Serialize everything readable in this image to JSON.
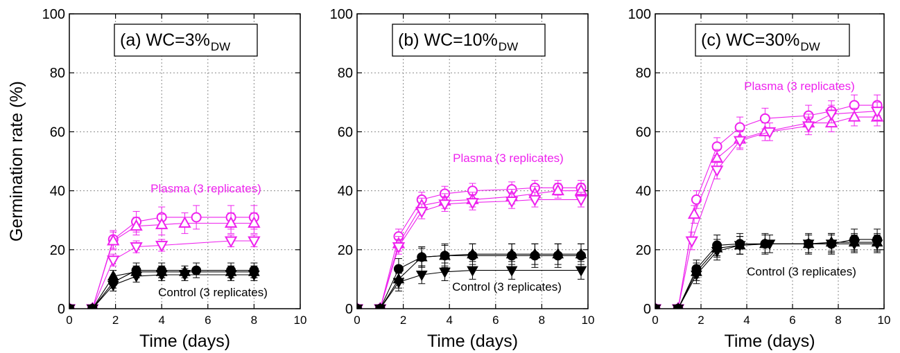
{
  "figure": {
    "ylabel": "Germination rate (%)"
  },
  "colors": {
    "plasma": "#ee22ee",
    "control": "#000000",
    "grid": "#888888"
  },
  "chart_data": [
    {
      "type": "line",
      "title": "(a) WC=3%",
      "title_subscript": "DW",
      "xlabel": "Time (days)",
      "ylabel": "Germination rate (%)",
      "xlim": [
        0,
        10
      ],
      "ylim": [
        0,
        100
      ],
      "xticks": [
        0,
        2,
        4,
        6,
        8,
        10
      ],
      "yticks": [
        0,
        20,
        40,
        60,
        80,
        100
      ],
      "grid": true,
      "annotations": [
        {
          "text": "Plasma (3 replicates)",
          "color": "plasma"
        },
        {
          "text": "Control (3 replicates)",
          "color": "control"
        }
      ],
      "series": [
        {
          "group": "plasma",
          "marker": "circle-open",
          "x": [
            0,
            1,
            1.9,
            2.9,
            4,
            5.5,
            7,
            8
          ],
          "y": [
            0,
            0,
            23.5,
            29.5,
            31,
            31,
            31,
            31
          ],
          "err": [
            0,
            0,
            3,
            3.5,
            3.5,
            4,
            4,
            4
          ]
        },
        {
          "group": "plasma",
          "marker": "triangle-up-open",
          "x": [
            0,
            1,
            1.9,
            2.9,
            4,
            5,
            7,
            8
          ],
          "y": [
            0,
            0,
            23,
            28,
            28.5,
            29,
            29,
            29
          ],
          "err": [
            0,
            0,
            3,
            3,
            3.5,
            3.5,
            3.5,
            3.5
          ]
        },
        {
          "group": "plasma",
          "marker": "triangle-down-open",
          "x": [
            0,
            1,
            1.9,
            2.9,
            4,
            7,
            8
          ],
          "y": [
            0,
            0,
            16.5,
            21,
            21.5,
            23,
            23
          ],
          "err": [
            0,
            0,
            2,
            2,
            2,
            2,
            2
          ]
        },
        {
          "group": "control",
          "marker": "circle-filled",
          "x": [
            0,
            1,
            1.9,
            2.9,
            4,
            5.5,
            7,
            8
          ],
          "y": [
            0,
            0,
            9,
            13,
            13,
            13,
            13,
            13
          ],
          "err": [
            0,
            0,
            2,
            2.5,
            2.5,
            2.5,
            2.5,
            2.5
          ]
        },
        {
          "group": "control",
          "marker": "triangle-up-filled",
          "x": [
            0,
            1,
            1.9,
            2.9,
            4,
            5,
            7,
            8
          ],
          "y": [
            0,
            0,
            11,
            12.5,
            12.5,
            12.5,
            12.5,
            12.5
          ],
          "err": [
            0,
            0,
            2,
            2,
            2,
            2,
            2,
            2
          ]
        },
        {
          "group": "control",
          "marker": "triangle-down-filled",
          "x": [
            0,
            1,
            1.9,
            2.9,
            4,
            5,
            7,
            8
          ],
          "y": [
            0,
            0,
            8,
            11,
            11.5,
            11.5,
            11.5,
            11.5
          ],
          "err": [
            0,
            0,
            2,
            2,
            2,
            2,
            2,
            2
          ]
        }
      ]
    },
    {
      "type": "line",
      "title": "(b) WC=10%",
      "title_subscript": "DW",
      "xlabel": "Time (days)",
      "ylabel": "",
      "xlim": [
        0,
        10
      ],
      "ylim": [
        0,
        100
      ],
      "xticks": [
        0,
        2,
        4,
        6,
        8,
        10
      ],
      "yticks": [
        0,
        20,
        40,
        60,
        80,
        100
      ],
      "grid": true,
      "annotations": [
        {
          "text": "Plasma (3 replicates)",
          "color": "plasma"
        },
        {
          "text": "Control (3 replicates)",
          "color": "control"
        }
      ],
      "series": [
        {
          "group": "plasma",
          "marker": "circle-open",
          "x": [
            0,
            1,
            1.8,
            2.8,
            3.8,
            5,
            6.7,
            7.7,
            8.7,
            9.7
          ],
          "y": [
            0,
            0,
            24.5,
            37,
            39,
            40,
            40.5,
            41,
            41,
            41
          ],
          "err": [
            0,
            0,
            2.5,
            2.5,
            2.5,
            2.5,
            2.5,
            2.5,
            2.5,
            2.5
          ]
        },
        {
          "group": "plasma",
          "marker": "triangle-up-open",
          "x": [
            0,
            1,
            1.8,
            2.8,
            3.8,
            5,
            6.7,
            7.7,
            8.7,
            9.7
          ],
          "y": [
            0,
            0,
            22,
            35,
            36.5,
            37,
            38,
            39,
            40,
            40
          ],
          "err": [
            0,
            0,
            2.5,
            2.5,
            2.5,
            2.5,
            2.5,
            2.5,
            2.5,
            2.5
          ]
        },
        {
          "group": "plasma",
          "marker": "triangle-down-open",
          "x": [
            0,
            1,
            1.8,
            2.8,
            3.8,
            5,
            6.7,
            7.7,
            9.7
          ],
          "y": [
            0,
            0,
            21,
            33,
            35.5,
            36,
            36.5,
            37,
            37
          ],
          "err": [
            0,
            0,
            2.5,
            2.5,
            2.5,
            2.5,
            2.5,
            2.5,
            2.5
          ]
        },
        {
          "group": "control",
          "marker": "circle-filled",
          "x": [
            0,
            1,
            1.8,
            2.8,
            3.8,
            5,
            6.7,
            7.7,
            8.7,
            9.7
          ],
          "y": [
            0,
            0,
            13.5,
            17.5,
            18,
            18,
            18,
            18,
            18,
            18
          ],
          "err": [
            0,
            0,
            3.5,
            3.5,
            4,
            4,
            4,
            4,
            4,
            4
          ]
        },
        {
          "group": "control",
          "marker": "triangle-up-filled",
          "x": [
            0,
            1,
            1.8,
            2.8,
            3.8,
            5,
            6.7,
            7.7,
            8.7,
            9.7
          ],
          "y": [
            0,
            0,
            10,
            17.5,
            18,
            18.5,
            18.5,
            18.5,
            18.5,
            18.5
          ],
          "err": [
            0,
            0,
            3,
            3,
            3.5,
            3.5,
            3.5,
            3.5,
            3.5,
            3.5
          ]
        },
        {
          "group": "control",
          "marker": "triangle-down-filled",
          "x": [
            0,
            1,
            1.8,
            2.8,
            3.8,
            5,
            6.7,
            9.7
          ],
          "y": [
            0,
            0,
            9,
            11.5,
            12.5,
            13,
            13,
            13
          ],
          "err": [
            0,
            0,
            3,
            3,
            3,
            3,
            3,
            3
          ]
        }
      ]
    },
    {
      "type": "line",
      "title": "(c) WC=30%",
      "title_subscript": "DW",
      "xlabel": "Time (days)",
      "ylabel": "",
      "xlim": [
        0,
        10
      ],
      "ylim": [
        0,
        100
      ],
      "xticks": [
        0,
        2,
        4,
        6,
        8,
        10
      ],
      "yticks": [
        0,
        20,
        40,
        60,
        80,
        100
      ],
      "grid": true,
      "annotations": [
        {
          "text": "Plasma (3 replicates)",
          "color": "plasma"
        },
        {
          "text": "Control (3 replicates)",
          "color": "control"
        }
      ],
      "series": [
        {
          "group": "plasma",
          "marker": "circle-open",
          "x": [
            0,
            1,
            1.8,
            2.7,
            3.7,
            4.8,
            6.7,
            7.7,
            8.7,
            9.7
          ],
          "y": [
            0,
            0,
            37,
            55,
            61.5,
            64.5,
            65.5,
            67,
            69,
            69
          ],
          "err": [
            0,
            0,
            3,
            3,
            3.5,
            3.5,
            3.5,
            3.5,
            3.5,
            3.5
          ]
        },
        {
          "group": "plasma",
          "marker": "triangle-up-open",
          "x": [
            0,
            1,
            1.7,
            2.7,
            3.7,
            4.8,
            6.7,
            7.7,
            8.7,
            9.7
          ],
          "y": [
            0,
            0,
            32,
            51,
            57.5,
            60,
            63,
            63,
            65,
            65
          ],
          "err": [
            0,
            0,
            3,
            3,
            3,
            3,
            3,
            3,
            3,
            3
          ]
        },
        {
          "group": "plasma",
          "marker": "triangle-down-open",
          "x": [
            0,
            1,
            1.6,
            2.7,
            3.7,
            5,
            6.7,
            7.7,
            9.7
          ],
          "y": [
            0,
            0,
            23,
            47,
            57,
            60,
            62,
            66,
            67
          ],
          "err": [
            0,
            0,
            3,
            3,
            3,
            3,
            3,
            3,
            3
          ]
        },
        {
          "group": "control",
          "marker": "circle-filled",
          "x": [
            0,
            1,
            1.8,
            2.7,
            3.7,
            4.8,
            6.7,
            7.7,
            8.7,
            9.7
          ],
          "y": [
            0,
            0,
            13.5,
            21.5,
            22,
            22,
            22,
            22,
            23.5,
            23.5
          ],
          "err": [
            0,
            0,
            3,
            3.5,
            3.5,
            3.5,
            3.5,
            3.5,
            3.5,
            3.5
          ]
        },
        {
          "group": "control",
          "marker": "triangle-up-filled",
          "x": [
            0,
            1,
            1.8,
            2.7,
            3.7,
            4.8,
            6.7,
            7.7,
            8.7,
            9.7
          ],
          "y": [
            0,
            0,
            12.5,
            20.5,
            21.5,
            22,
            22,
            22.5,
            22.5,
            22.5
          ],
          "err": [
            0,
            0,
            3,
            3,
            3,
            3,
            3,
            3,
            3,
            3
          ]
        },
        {
          "group": "control",
          "marker": "triangle-down-filled",
          "x": [
            0,
            1,
            1.8,
            2.7,
            3.7,
            5,
            6.7,
            7.7,
            8.7,
            9.7
          ],
          "y": [
            0,
            0,
            11.5,
            19.5,
            21.5,
            22,
            22,
            22,
            22,
            22
          ],
          "err": [
            0,
            0,
            3,
            3,
            3,
            3,
            3,
            3,
            3,
            3
          ]
        }
      ]
    }
  ]
}
